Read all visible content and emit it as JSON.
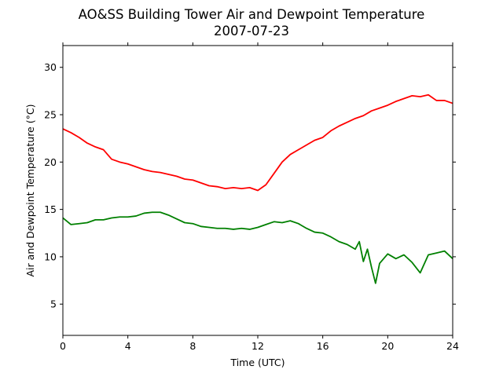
{
  "chart_data": {
    "type": "line",
    "title": "AO&SS Building Tower Air and Dewpoint Temperature",
    "subtitle": "2007-07-23",
    "xlabel": "Time (UTC)",
    "ylabel": "Air and Dewpoint Temperature (°C)",
    "xlim": [
      0,
      24
    ],
    "ylim": [
      1.7,
      32.3
    ],
    "xticks": [
      0,
      4,
      8,
      12,
      16,
      20,
      24
    ],
    "yticks": [
      5,
      10,
      15,
      20,
      25,
      30
    ],
    "grid": false,
    "series": [
      {
        "color": "#ff0000",
        "x": [
          0,
          0.5,
          1,
          1.5,
          2,
          2.5,
          3,
          3.5,
          4,
          4.5,
          5,
          5.5,
          6,
          6.5,
          7,
          7.5,
          8,
          8.5,
          9,
          9.5,
          10,
          10.5,
          11,
          11.5,
          12,
          12.5,
          13,
          13.5,
          14,
          14.5,
          15,
          15.5,
          16,
          16.5,
          17,
          17.5,
          18,
          18.5,
          19,
          19.5,
          20,
          20.5,
          21,
          21.5,
          22,
          22.5,
          23,
          23.5,
          24
        ],
        "values": [
          23.5,
          23.1,
          22.6,
          22.0,
          21.6,
          21.3,
          20.3,
          20.0,
          19.8,
          19.5,
          19.2,
          19.0,
          18.9,
          18.7,
          18.5,
          18.2,
          18.1,
          17.8,
          17.5,
          17.4,
          17.2,
          17.3,
          17.2,
          17.3,
          17.0,
          17.6,
          18.8,
          20.0,
          20.8,
          21.3,
          21.8,
          22.3,
          22.6,
          23.3,
          23.8,
          24.2,
          24.6,
          24.9,
          25.4,
          25.7,
          26.0,
          26.4,
          26.7,
          27.0,
          26.9,
          27.1,
          26.5,
          26.5,
          26.2
        ]
      },
      {
        "color": "#008000",
        "x": [
          0,
          0.5,
          1,
          1.5,
          2,
          2.5,
          3,
          3.5,
          4,
          4.5,
          5,
          5.5,
          6,
          6.5,
          7,
          7.5,
          8,
          8.5,
          9,
          9.5,
          10,
          10.5,
          11,
          11.5,
          12,
          12.5,
          13,
          13.5,
          14,
          14.5,
          15,
          15.5,
          16,
          16.5,
          17,
          17.5,
          18,
          18.25,
          18.5,
          18.75,
          19,
          19.25,
          19.5,
          19.75,
          20,
          20.5,
          21,
          21.5,
          22,
          22.5,
          23,
          23.5,
          24
        ],
        "values": [
          14.1,
          13.4,
          13.5,
          13.6,
          13.9,
          13.9,
          14.1,
          14.2,
          14.2,
          14.3,
          14.6,
          14.7,
          14.7,
          14.4,
          14.0,
          13.6,
          13.5,
          13.2,
          13.1,
          13.0,
          13.0,
          12.9,
          13.0,
          12.9,
          13.1,
          13.4,
          13.7,
          13.6,
          13.8,
          13.5,
          13.0,
          12.6,
          12.5,
          12.1,
          11.6,
          11.3,
          10.8,
          11.6,
          9.5,
          10.8,
          8.9,
          7.2,
          9.3,
          9.8,
          10.3,
          9.8,
          10.2,
          9.4,
          8.3,
          10.2,
          10.4,
          10.6,
          9.8
        ]
      }
    ]
  }
}
